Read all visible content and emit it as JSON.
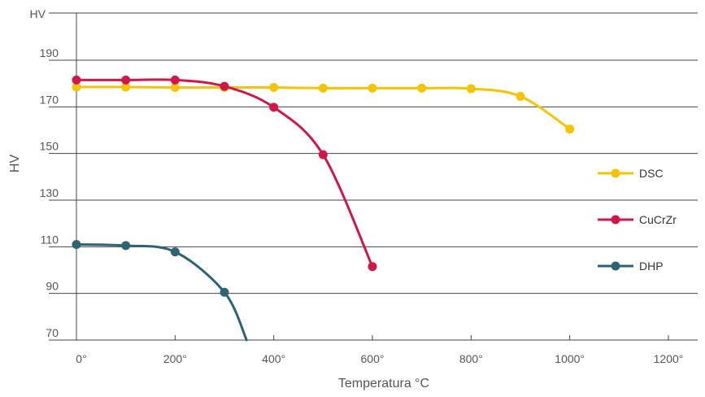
{
  "chart_data": {
    "type": "line",
    "title": "",
    "xlabel": "Temperatura °C",
    "ylabel": "HV",
    "xlim": [
      0,
      1200
    ],
    "ylim": [
      70,
      200
    ],
    "x_ticks": [
      0,
      200,
      400,
      600,
      800,
      1000,
      1200
    ],
    "x_tick_labels": [
      "0°",
      "200°",
      "400°",
      "600°",
      "800°",
      "1000°",
      "1200°"
    ],
    "y_ticks": [
      70,
      90,
      110,
      130,
      150,
      170,
      190
    ],
    "y_tick_labels": [
      "70",
      "90",
      "110",
      "130",
      "150",
      "170",
      "190"
    ],
    "y_top_label": "HV",
    "grid": "horizontal",
    "legend_position": "right",
    "series": [
      {
        "name": "DSC",
        "color": "#F5C400",
        "points": [
          [
            0,
            178.5
          ],
          [
            100,
            178.5
          ],
          [
            200,
            178.3
          ],
          [
            300,
            178.3
          ],
          [
            400,
            178.3
          ],
          [
            500,
            178
          ],
          [
            600,
            178
          ],
          [
            700,
            178
          ],
          [
            800,
            177.8
          ],
          [
            900,
            174.5
          ],
          [
            1000,
            160.5
          ]
        ]
      },
      {
        "name": "CuCrZr",
        "color": "#D0174A",
        "points": [
          [
            0,
            181.5
          ],
          [
            100,
            181.5
          ],
          [
            200,
            181.5
          ],
          [
            300,
            178.8
          ],
          [
            400,
            169.8
          ],
          [
            500,
            149.5
          ],
          [
            600,
            101.5
          ]
        ]
      },
      {
        "name": "DHP",
        "color": "#2E6372",
        "points": [
          [
            0,
            111
          ],
          [
            100,
            110.5
          ],
          [
            200,
            107.8
          ],
          [
            300,
            90.5
          ]
        ],
        "markerless_tail": [
          345,
          70
        ]
      }
    ]
  }
}
